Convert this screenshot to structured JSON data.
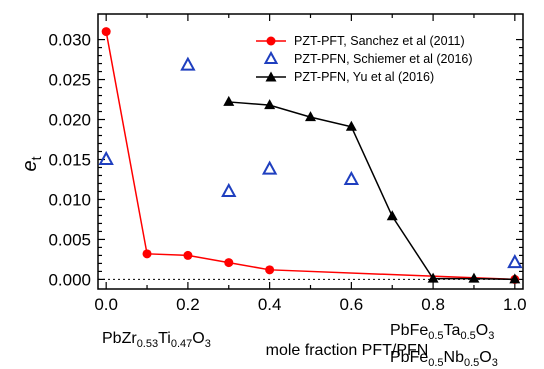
{
  "chart_data": {
    "type": "scatter",
    "xlabel": "mole fraction PFT/PFN",
    "ylabel": {
      "main": "e",
      "sub": "t"
    },
    "xlim": [
      -0.02,
      1.02
    ],
    "ylim": [
      -0.0012,
      0.0332
    ],
    "xticks": [
      0.0,
      0.2,
      0.4,
      0.6,
      0.8,
      1.0
    ],
    "xtick_labels": [
      "0.0",
      "0.2",
      "0.4",
      "0.6",
      "0.8",
      "1.0"
    ],
    "yticks": [
      0.0,
      0.005,
      0.01,
      0.015,
      0.02,
      0.025,
      0.03
    ],
    "ytick_labels": [
      "0.000",
      "0.005",
      "0.010",
      "0.015",
      "0.020",
      "0.025",
      "0.030"
    ],
    "zero_line": "dotted",
    "legend_position": "top-right",
    "series": [
      {
        "name": "PZT-PFT, Sanchez et al (2011)",
        "marker": "filled-circle",
        "line": true,
        "color": "#ff0000",
        "x": [
          0.0,
          0.1,
          0.2,
          0.3,
          0.4,
          1.0
        ],
        "y": [
          0.031,
          0.0032,
          0.003,
          0.0021,
          0.0012,
          0.0
        ]
      },
      {
        "name": "PZT-PFN, Schiemer et al (2016)",
        "marker": "open-triangle",
        "line": false,
        "color": "#1f3fbf",
        "x": [
          0.0,
          0.2,
          0.3,
          0.4,
          0.6,
          1.0
        ],
        "y": [
          0.015,
          0.0268,
          0.011,
          0.0138,
          0.0125,
          0.0021
        ]
      },
      {
        "name": "PZT-PFN, Yu et al (2016)",
        "marker": "filled-triangle",
        "line": true,
        "color": "#000000",
        "x": [
          0.3,
          0.4,
          0.5,
          0.6,
          0.7,
          0.8,
          0.9,
          1.0
        ],
        "y": [
          0.0222,
          0.0218,
          0.0203,
          0.0191,
          0.0079,
          0.0001,
          0.0001,
          0.0
        ]
      }
    ],
    "endpoint_labels": {
      "left": {
        "parts": [
          [
            "Pb",
            ""
          ],
          [
            "Zr",
            ""
          ],
          [
            "0.53",
            "sub"
          ],
          [
            "Ti",
            ""
          ],
          [
            "0.47",
            "sub"
          ],
          [
            "O",
            ""
          ],
          [
            "3",
            "sub"
          ]
        ]
      },
      "right_top": {
        "parts": [
          [
            "PbFe",
            ""
          ],
          [
            "0.5",
            "sub"
          ],
          [
            "Ta",
            ""
          ],
          [
            "0.5",
            "sub"
          ],
          [
            "O",
            ""
          ],
          [
            "3",
            "sub"
          ]
        ]
      },
      "right_bottom": {
        "parts": [
          [
            "PbFe",
            ""
          ],
          [
            "0.5",
            "sub"
          ],
          [
            "Nb",
            ""
          ],
          [
            "0.5",
            "sub"
          ],
          [
            "O",
            ""
          ],
          [
            "3",
            "sub"
          ]
        ]
      }
    }
  }
}
